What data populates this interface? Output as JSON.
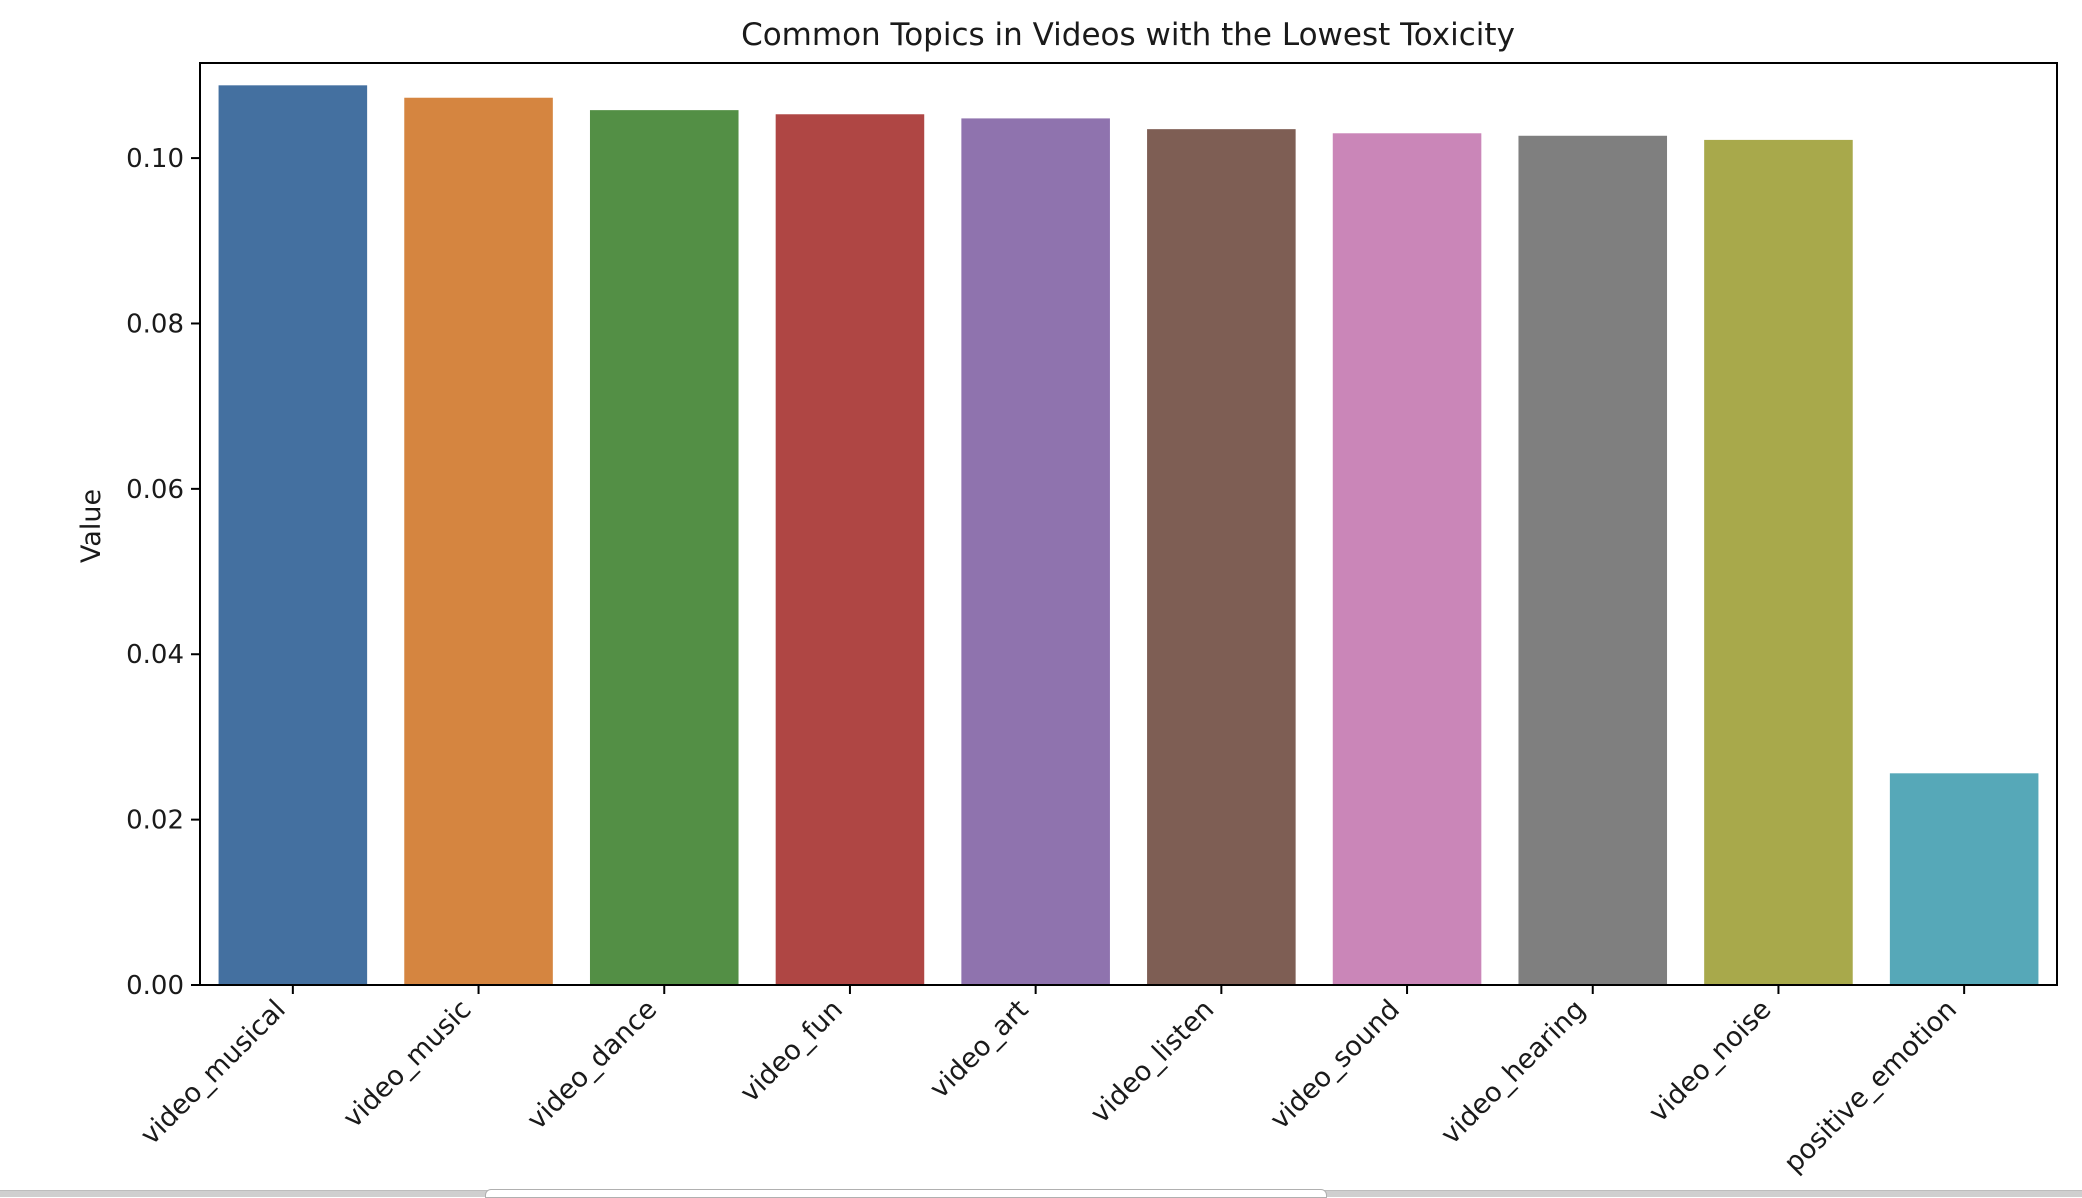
{
  "chart_data": {
    "type": "bar",
    "title": "Common Topics in Videos with the Lowest Toxicity",
    "xlabel": "",
    "ylabel": "Value",
    "categories": [
      "video_musical",
      "video_music",
      "video_dance",
      "video_fun",
      "video_art",
      "video_listen",
      "video_sound",
      "video_hearing",
      "video_noise",
      "positive_emotion"
    ],
    "values": [
      0.1088,
      0.1073,
      0.1058,
      0.1053,
      0.1048,
      0.1035,
      0.103,
      0.1027,
      0.1022,
      0.0256
    ],
    "colors": [
      "#4470a0",
      "#d58540",
      "#538f45",
      "#af4644",
      "#8f73ae",
      "#7e5e54",
      "#ca86b8",
      "#7f7f7f",
      "#a8a94b",
      "#56a8b8"
    ],
    "ylim": [
      0,
      0.1115
    ],
    "yticks": [
      0.0,
      0.02,
      0.04,
      0.06,
      0.08,
      0.1
    ],
    "ytick_labels": [
      "0.00",
      "0.02",
      "0.04",
      "0.06",
      "0.08",
      "0.10"
    ],
    "grid": false,
    "legend": "none"
  }
}
